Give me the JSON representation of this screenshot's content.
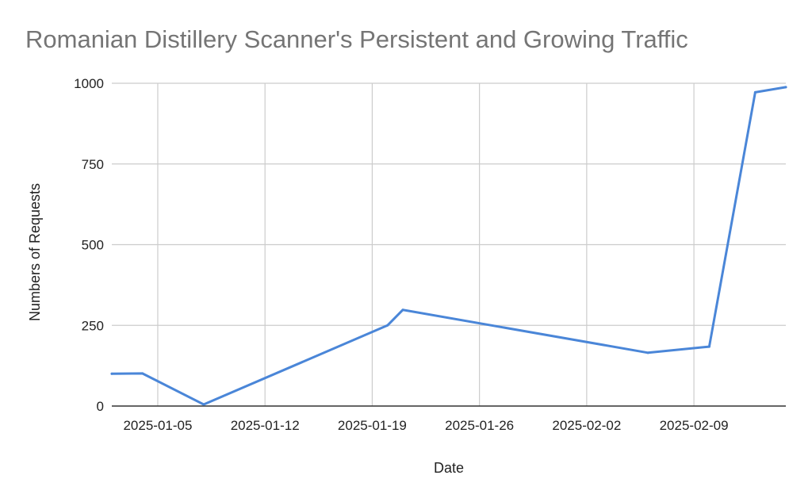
{
  "chart_data": {
    "type": "line",
    "title": "Romanian Distillery Scanner's Persistent and Growing Traffic",
    "xlabel": "Date",
    "ylabel": "Numbers of Requests",
    "ylim": [
      0,
      1000
    ],
    "yticks": [
      0,
      250,
      500,
      750,
      1000
    ],
    "xlim": [
      "2025-01-02",
      "2025-02-15"
    ],
    "xticks": [
      "2025-01-05",
      "2025-01-12",
      "2025-01-19",
      "2025-01-26",
      "2025-02-02",
      "2025-02-09"
    ],
    "grid": true,
    "legend": "none",
    "color": "#4a86d8",
    "series": [
      {
        "x": [
          "2025-01-02",
          "2025-01-04",
          "2025-01-08",
          "2025-01-20",
          "2025-01-21",
          "2025-02-06",
          "2025-02-10",
          "2025-02-13",
          "2025-02-15"
        ],
        "y": [
          100,
          101,
          5,
          250,
          298,
          165,
          184,
          972,
          988
        ]
      }
    ]
  }
}
